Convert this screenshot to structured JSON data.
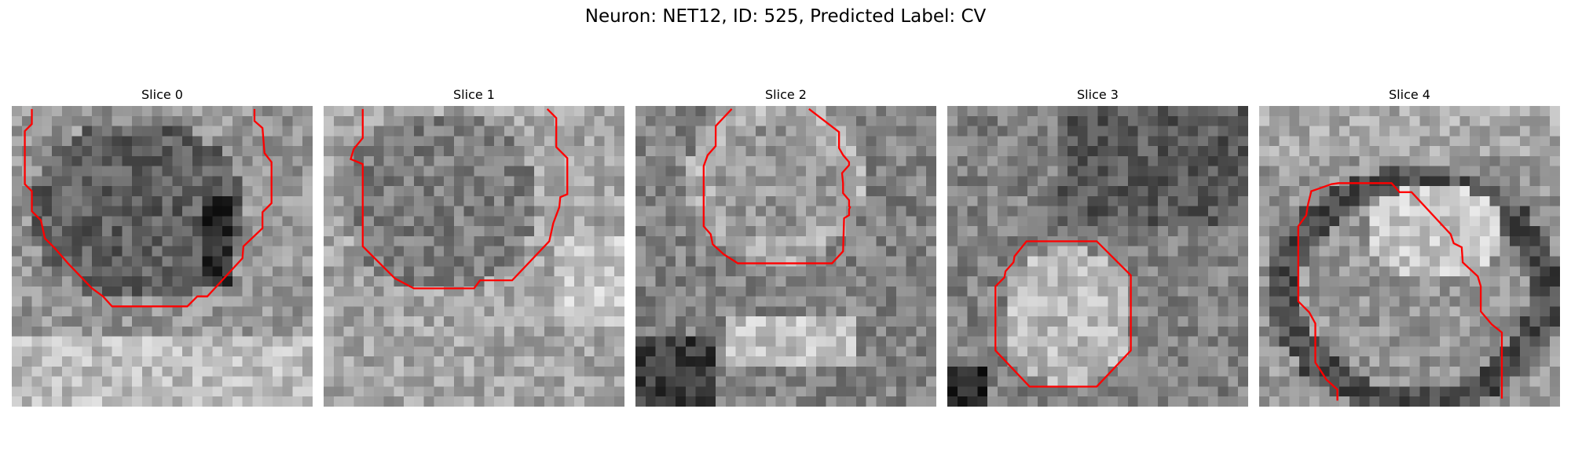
{
  "figure": {
    "title": "Neuron: NET12, ID: 525, Predicted Label: CV"
  },
  "contour_color": "#ff0000",
  "panels": [
    {
      "title": "Slice 0",
      "pattern": "blob-dark-center"
    },
    {
      "title": "Slice 1",
      "pattern": "blob-mid-center"
    },
    {
      "title": "Slice 2",
      "pattern": "bright-ring"
    },
    {
      "title": "Slice 3",
      "pattern": "dark-top-bright-bottom"
    },
    {
      "title": "Slice 4",
      "pattern": "curved-band"
    }
  ]
}
